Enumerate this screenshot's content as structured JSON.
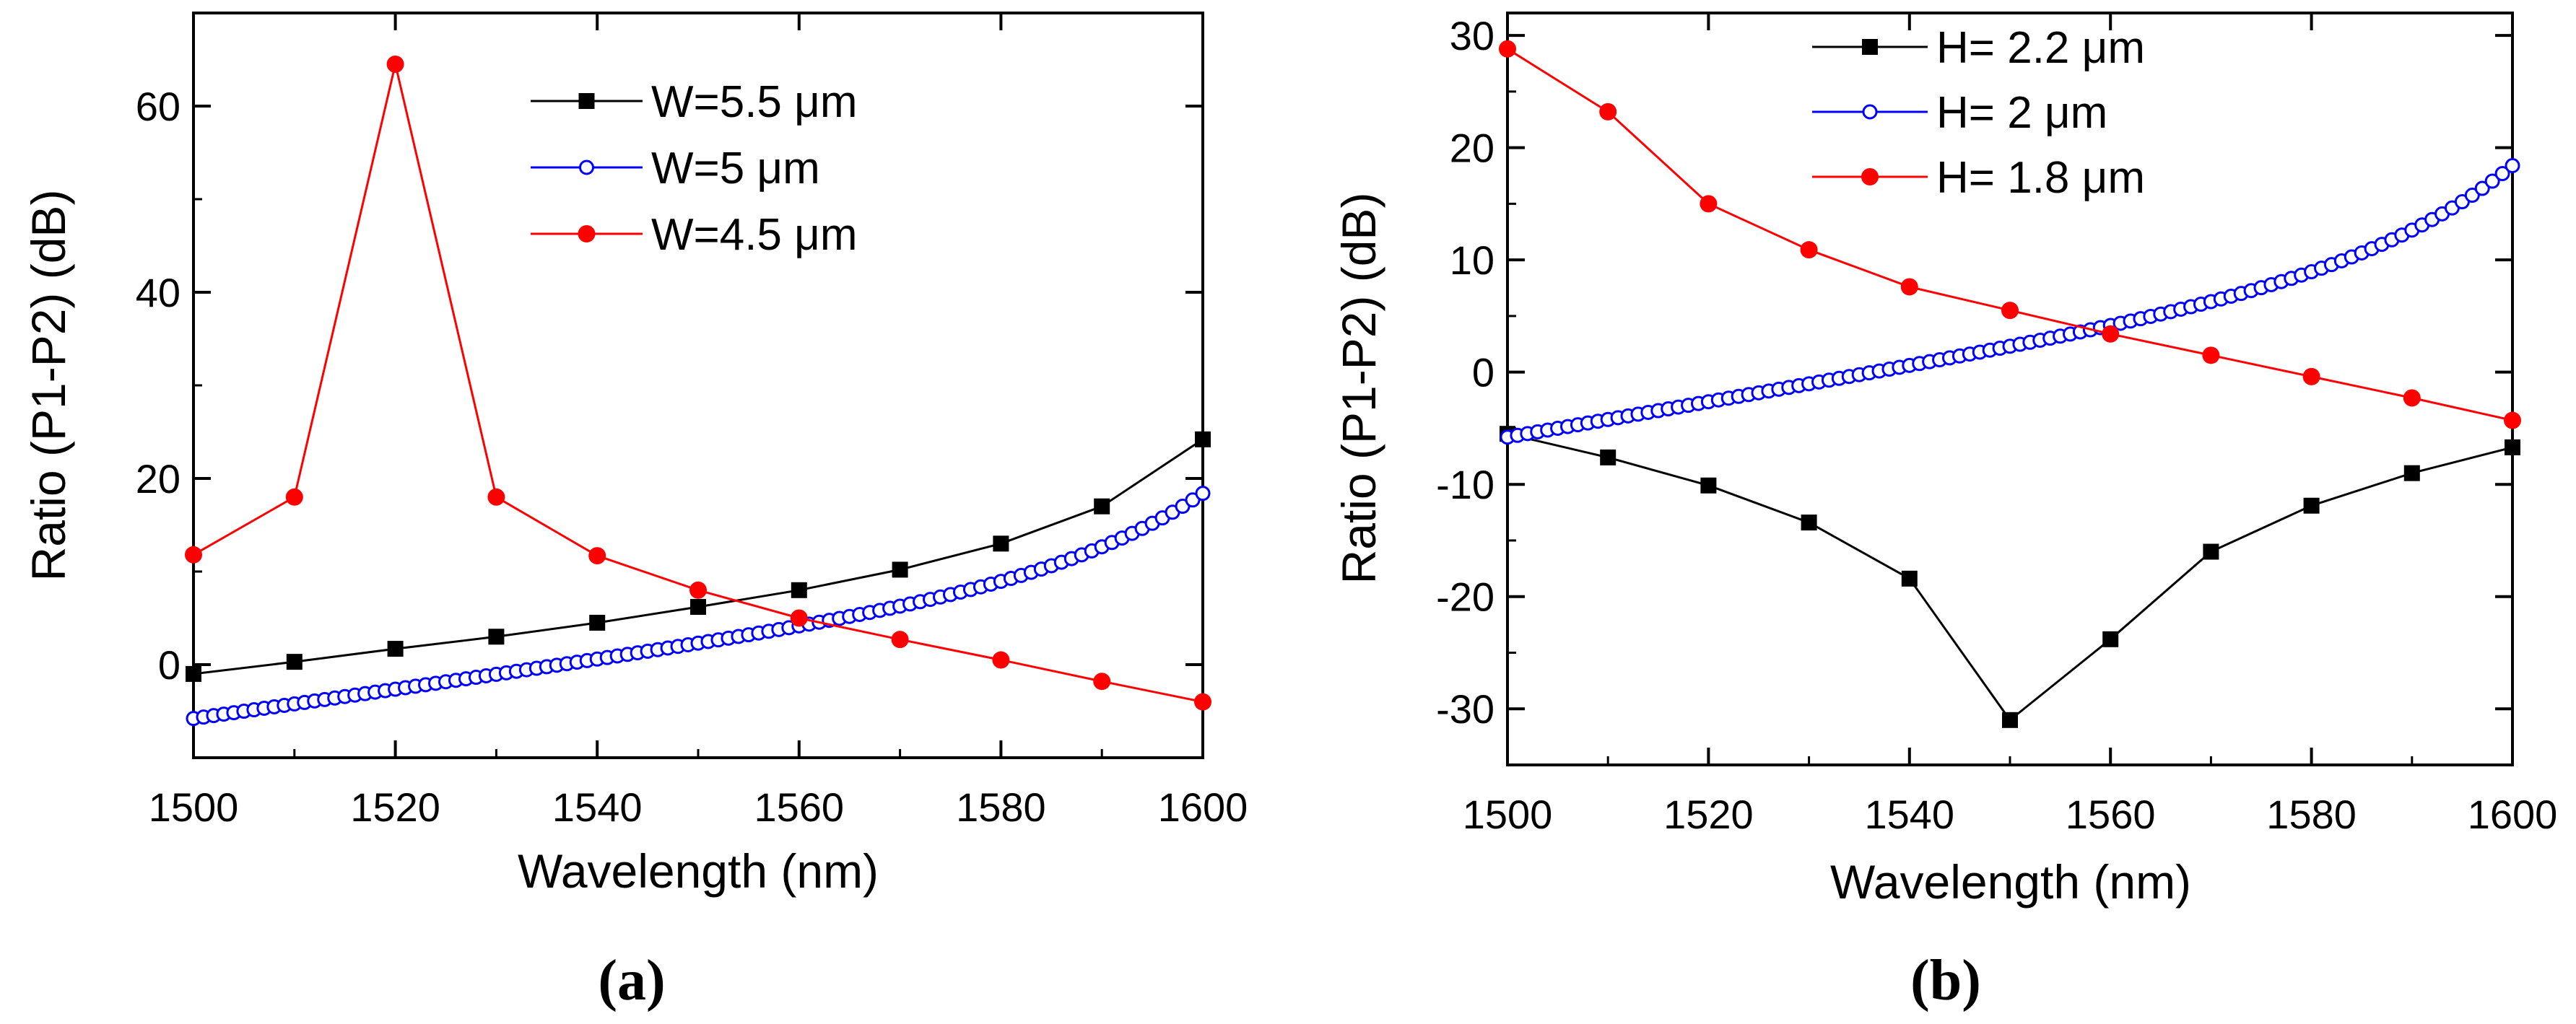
{
  "figure": {
    "panels": [
      "(a)",
      "(b)"
    ]
  },
  "chart_data": [
    {
      "type": "line",
      "panel": "(a)",
      "title": "",
      "xlabel": "Wavelength (nm)",
      "ylabel": "Ratio (P1-P2) (dB)",
      "xlim": [
        1500,
        1600
      ],
      "ylim": [
        -10,
        70
      ],
      "xticks": [
        1500,
        1520,
        1540,
        1560,
        1580,
        1600
      ],
      "yticks": [
        0,
        20,
        40,
        60
      ],
      "legend_position": "top-right",
      "series": [
        {
          "name": "W=5.5 μm",
          "color": "#000000",
          "marker": "square",
          "x": [
            1500,
            1510,
            1520,
            1530,
            1540,
            1550,
            1560,
            1570,
            1580,
            1590,
            1600
          ],
          "y": [
            -1.0,
            0.3,
            1.7,
            3.0,
            4.5,
            6.2,
            8.0,
            10.2,
            13.0,
            17.0,
            24.2
          ]
        },
        {
          "name": "W=5 μm",
          "color": "#0000ff",
          "marker": "open-circle",
          "range": [
            1500,
            1600
          ],
          "step": 1,
          "curve": "linear-to-exp",
          "start": -5.8,
          "slope": 0.156,
          "amp": 8.6,
          "tau": 15
        },
        {
          "name": "W=4.5 μm",
          "color": "#ff0000",
          "marker": "filled-circle",
          "x": [
            1500,
            1510,
            1520,
            1530,
            1540,
            1550,
            1560,
            1570,
            1580,
            1590,
            1600
          ],
          "y": [
            11.8,
            18.0,
            64.5,
            18.0,
            11.7,
            8.0,
            5.0,
            2.7,
            0.5,
            -1.8,
            -4.0
          ]
        }
      ]
    },
    {
      "type": "line",
      "panel": "(b)",
      "title": "",
      "xlabel": "Wavelength (nm)",
      "ylabel": "Ratio (P1-P2) (dB)",
      "xlim": [
        1500,
        1600
      ],
      "ylim": [
        -35,
        32
      ],
      "xticks": [
        1500,
        1520,
        1540,
        1560,
        1580,
        1600
      ],
      "yticks": [
        -30,
        -20,
        -10,
        0,
        10,
        20,
        30
      ],
      "legend_position": "top-left",
      "series": [
        {
          "name": "H= 2.2 μm",
          "color": "#000000",
          "marker": "square",
          "x": [
            1500,
            1510,
            1520,
            1530,
            1540,
            1550,
            1560,
            1570,
            1580,
            1590,
            1600
          ],
          "y": [
            -5.5,
            -7.6,
            -10.1,
            -13.4,
            -18.4,
            -31.0,
            -23.8,
            -16.0,
            -11.9,
            -9.0,
            -6.7
          ]
        },
        {
          "name": "H= 2 μm",
          "color": "#0000ff",
          "marker": "open-circle",
          "range": [
            1500,
            1600
          ],
          "step": 1,
          "curve": "linear-to-exp",
          "start": -5.8,
          "slope": 0.156,
          "amp": 8.6,
          "tau": 15
        },
        {
          "name": "H= 1.8 μm",
          "color": "#ff0000",
          "marker": "filled-circle",
          "x": [
            1500,
            1510,
            1520,
            1530,
            1540,
            1550,
            1560,
            1570,
            1580,
            1590,
            1600
          ],
          "y": [
            28.8,
            23.2,
            15.0,
            10.9,
            7.6,
            5.5,
            3.4,
            1.5,
            -0.4,
            -2.3,
            -4.3
          ]
        }
      ]
    }
  ]
}
